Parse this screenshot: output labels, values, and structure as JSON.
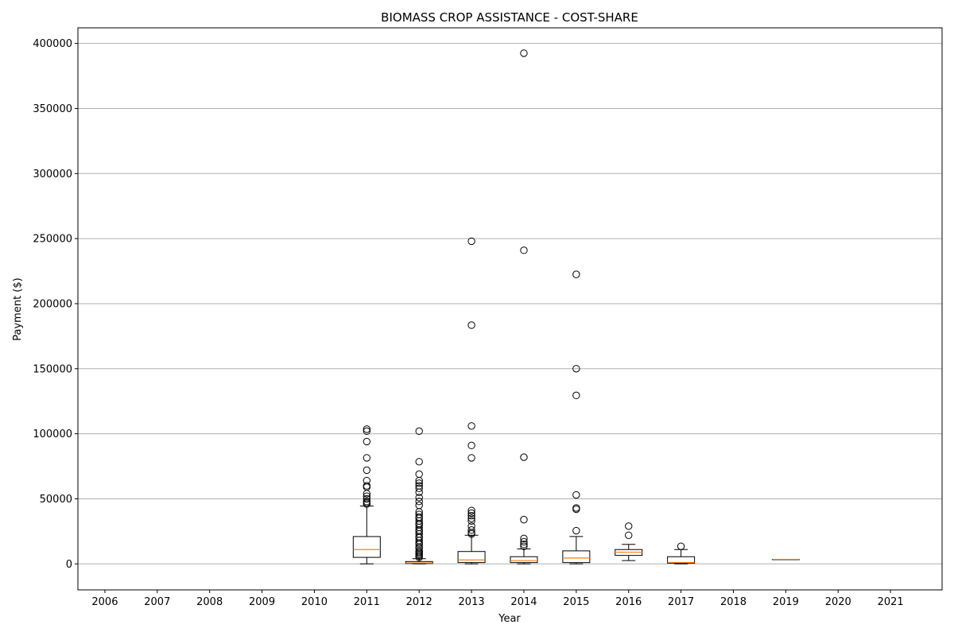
{
  "chart_data": {
    "type": "box",
    "title": "BIOMASS CROP ASSISTANCE - COST-SHARE",
    "xlabel": "Year",
    "ylabel": "Payment ($)",
    "ylim": [
      -20000,
      412000
    ],
    "yticks": [
      0,
      50000,
      100000,
      150000,
      200000,
      250000,
      300000,
      350000,
      400000
    ],
    "grid": "horizontal",
    "categories": [
      "2006",
      "2007",
      "2008",
      "2009",
      "2010",
      "2011",
      "2012",
      "2013",
      "2014",
      "2015",
      "2016",
      "2017",
      "2018",
      "2019",
      "2020",
      "2021"
    ],
    "boxes": [
      {
        "year": "2011",
        "whisker_low": 0,
        "q1": 5000,
        "median": 11000,
        "q3": 21000,
        "whisker_high": 44500,
        "outliers": [
          103500,
          102000,
          94000,
          81500,
          72000,
          64000,
          60000,
          59000,
          54000,
          52000,
          50000,
          48000,
          47000,
          46000
        ]
      },
      {
        "year": "2012",
        "whisker_low": 0,
        "q1": 300,
        "median": 700,
        "q3": 1800,
        "whisker_high": 4000,
        "outliers": [
          102000,
          78500,
          69000,
          64000,
          62000,
          60000,
          58000,
          55000,
          51000,
          48000,
          45000,
          40000,
          38000,
          36000,
          35000,
          33000,
          31000,
          30000,
          28000,
          26000,
          25000,
          23000,
          21000,
          20000,
          18000,
          16000,
          15000,
          13000,
          12000,
          10000,
          9000,
          8000,
          7000,
          6000,
          5000
        ]
      },
      {
        "year": "2013",
        "whisker_low": 0,
        "q1": 1000,
        "median": 3000,
        "q3": 9500,
        "whisker_high": 22000,
        "outliers": [
          248000,
          183500,
          106000,
          91000,
          81500,
          41000,
          39000,
          37000,
          35000,
          33000,
          29000,
          26000,
          24000,
          23000
        ]
      },
      {
        "year": "2014",
        "whisker_low": 0,
        "q1": 1000,
        "median": 2500,
        "q3": 5500,
        "whisker_high": 11500,
        "outliers": [
          392500,
          241000,
          82000,
          34000,
          19500,
          17000,
          15000,
          13500
        ]
      },
      {
        "year": "2015",
        "whisker_low": 0,
        "q1": 1000,
        "median": 4500,
        "q3": 10000,
        "whisker_high": 21000,
        "outliers": [
          222500,
          150000,
          129500,
          53000,
          43000,
          42000,
          25500
        ]
      },
      {
        "year": "2016",
        "whisker_low": 2500,
        "q1": 6500,
        "median": 9000,
        "q3": 11000,
        "whisker_high": 15000,
        "outliers": [
          29000,
          22000
        ]
      },
      {
        "year": "2017",
        "whisker_low": 0,
        "q1": 500,
        "median": 1000,
        "q3": 5500,
        "whisker_high": 11000,
        "outliers": [
          13500
        ]
      },
      {
        "year": "2019",
        "whisker_low": 3500,
        "q1": 3500,
        "median": 3500,
        "q3": 3500,
        "whisker_high": 3500,
        "outliers": []
      }
    ],
    "colors": {
      "box": "#000000",
      "median": "#ff7f0e",
      "grid": "#b0b0b0",
      "outlier_edge": "#000000"
    }
  }
}
